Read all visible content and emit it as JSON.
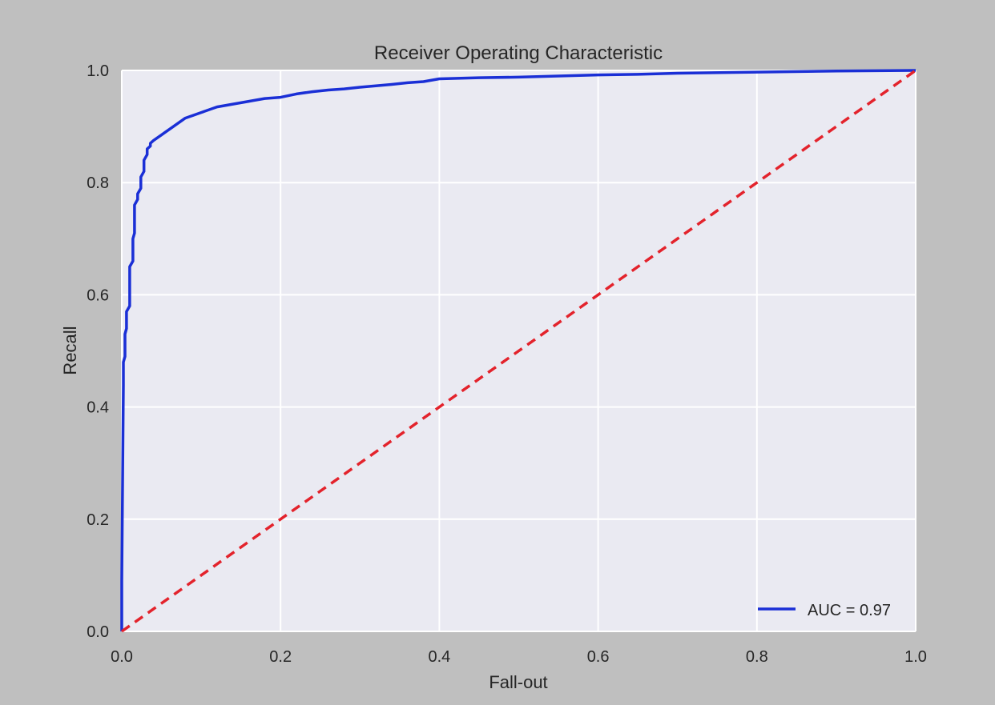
{
  "chart_data": {
    "type": "line",
    "title": "Receiver Operating Characteristic",
    "xlabel": "Fall-out",
    "ylabel": "Recall",
    "xlim": [
      0,
      1
    ],
    "ylim": [
      0,
      1
    ],
    "xticks": [
      "0.0",
      "0.2",
      "0.4",
      "0.6",
      "0.8",
      "1.0"
    ],
    "yticks": [
      "0.0",
      "0.2",
      "0.4",
      "0.6",
      "0.8",
      "1.0"
    ],
    "grid": true,
    "legend_position": "lower-right",
    "colors": {
      "figure_background": "#bfbfbf",
      "plot_background": "#eaeaf2",
      "grid": "#ffffff",
      "roc": "#1a2fd6",
      "baseline": "#e3232c"
    },
    "series": [
      {
        "name": "AUC = 0.97",
        "style": "solid",
        "x": [
          0,
          0,
          0.002,
          0.002,
          0.004,
          0.004,
          0.006,
          0.006,
          0.01,
          0.01,
          0.014,
          0.014,
          0.016,
          0.016,
          0.02,
          0.02,
          0.024,
          0.024,
          0.028,
          0.028,
          0.032,
          0.032,
          0.036,
          0.036,
          0.04,
          0.045,
          0.05,
          0.055,
          0.06,
          0.07,
          0.08,
          0.09,
          0.1,
          0.12,
          0.14,
          0.16,
          0.18,
          0.2,
          0.22,
          0.24,
          0.26,
          0.28,
          0.3,
          0.34,
          0.36,
          0.38,
          0.4,
          0.45,
          0.5,
          0.55,
          0.6,
          0.65,
          0.7,
          0.8,
          0.9,
          1.0
        ],
        "y": [
          0,
          0.09,
          0.44,
          0.48,
          0.49,
          0.53,
          0.54,
          0.57,
          0.58,
          0.65,
          0.66,
          0.7,
          0.71,
          0.76,
          0.77,
          0.78,
          0.79,
          0.81,
          0.82,
          0.84,
          0.85,
          0.86,
          0.865,
          0.87,
          0.875,
          0.88,
          0.885,
          0.89,
          0.895,
          0.905,
          0.915,
          0.92,
          0.925,
          0.935,
          0.94,
          0.945,
          0.95,
          0.952,
          0.958,
          0.962,
          0.965,
          0.967,
          0.97,
          0.975,
          0.978,
          0.98,
          0.985,
          0.987,
          0.988,
          0.99,
          0.992,
          0.993,
          0.995,
          0.997,
          0.999,
          1.0
        ]
      },
      {
        "style": "dashed",
        "x": [
          0,
          1
        ],
        "y": [
          0,
          1
        ]
      }
    ]
  }
}
